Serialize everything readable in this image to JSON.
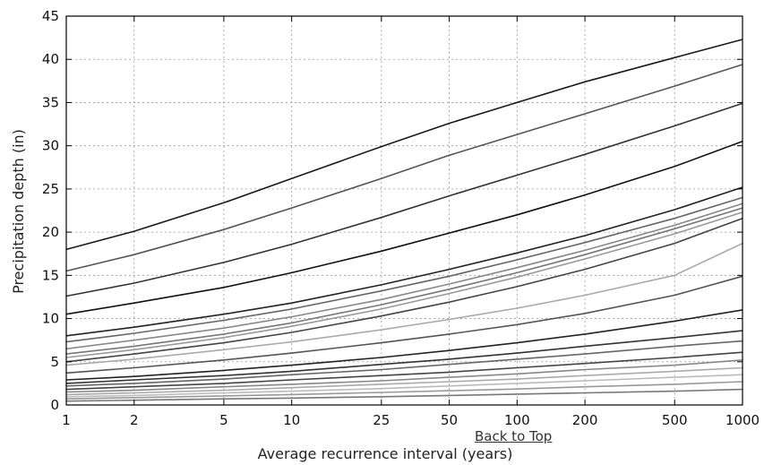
{
  "back_to_top": "Back to Top",
  "chart_data": {
    "type": "line",
    "title": "",
    "xlabel": "Average recurrence interval (years)",
    "ylabel": "Precipitation depth (in)",
    "x_scale": "log",
    "xlim": [
      1,
      1000
    ],
    "ylim": [
      0,
      45
    ],
    "x_ticks": [
      1,
      2,
      5,
      10,
      25,
      50,
      100,
      200,
      500,
      1000
    ],
    "x_tick_labels": [
      "1",
      "2",
      "5",
      "10",
      "25",
      "50",
      "100",
      "200",
      "500",
      "1000"
    ],
    "y_ticks": [
      0,
      5,
      10,
      15,
      20,
      25,
      30,
      35,
      40,
      45
    ],
    "y_tick_labels": [
      "0",
      "5",
      "10",
      "15",
      "20",
      "25",
      "30",
      "35",
      "40",
      "45"
    ],
    "grid": true,
    "x": [
      1,
      2,
      5,
      10,
      25,
      50,
      100,
      200,
      500,
      1000
    ],
    "series": [
      {
        "values": [
          18.0,
          20.1,
          23.4,
          26.2,
          29.9,
          32.6,
          35.0,
          37.4,
          40.2,
          42.3
        ],
        "color": "#1a1a1a"
      },
      {
        "values": [
          15.5,
          17.4,
          20.3,
          22.8,
          26.2,
          28.9,
          31.3,
          33.7,
          36.9,
          39.4
        ],
        "color": "#555555"
      },
      {
        "values": [
          12.6,
          14.1,
          16.5,
          18.6,
          21.7,
          24.2,
          26.6,
          29.0,
          32.3,
          34.9
        ],
        "color": "#333333"
      },
      {
        "values": [
          10.5,
          11.8,
          13.6,
          15.3,
          17.8,
          19.9,
          22.0,
          24.3,
          27.6,
          30.5
        ],
        "color": "#111111"
      },
      {
        "values": [
          8.0,
          9.0,
          10.5,
          11.8,
          13.9,
          15.7,
          17.6,
          19.6,
          22.6,
          25.2
        ],
        "color": "#222222"
      },
      {
        "values": [
          7.3,
          8.3,
          9.8,
          11.1,
          13.2,
          14.9,
          16.8,
          18.8,
          21.6,
          24.0
        ],
        "color": "#666666"
      },
      {
        "values": [
          6.5,
          7.5,
          8.9,
          10.2,
          12.2,
          14.0,
          15.9,
          17.9,
          20.8,
          23.3
        ],
        "color": "#888888"
      },
      {
        "values": [
          5.9,
          6.8,
          8.2,
          9.5,
          11.6,
          13.4,
          15.3,
          17.4,
          20.4,
          22.8
        ],
        "color": "#777777"
      },
      {
        "values": [
          5.5,
          6.4,
          7.8,
          9.1,
          11.1,
          12.9,
          14.8,
          16.9,
          19.8,
          22.3
        ],
        "color": "#999999"
      },
      {
        "values": [
          5.0,
          5.9,
          7.2,
          8.4,
          10.3,
          11.9,
          13.7,
          15.7,
          18.7,
          21.6
        ],
        "color": "#444444"
      },
      {
        "values": [
          4.6,
          5.3,
          6.4,
          7.3,
          8.7,
          9.9,
          11.2,
          12.7,
          15.0,
          18.7
        ],
        "color": "#aaaaaa"
      },
      {
        "values": [
          3.7,
          4.3,
          5.2,
          6.0,
          7.2,
          8.2,
          9.3,
          10.6,
          12.7,
          14.9
        ],
        "color": "#555555"
      },
      {
        "values": [
          2.9,
          3.3,
          4.0,
          4.6,
          5.5,
          6.3,
          7.2,
          8.2,
          9.7,
          11.0
        ],
        "color": "#222222"
      },
      {
        "values": [
          2.5,
          2.9,
          3.4,
          3.9,
          4.7,
          5.3,
          6.0,
          6.8,
          7.8,
          8.6
        ],
        "color": "#333333"
      },
      {
        "values": [
          2.2,
          2.5,
          3.0,
          3.5,
          4.1,
          4.7,
          5.3,
          5.9,
          6.8,
          7.4
        ],
        "color": "#666666"
      },
      {
        "values": [
          1.8,
          2.1,
          2.5,
          2.9,
          3.4,
          3.8,
          4.3,
          4.8,
          5.5,
          6.1
        ],
        "color": "#444444"
      },
      {
        "values": [
          1.5,
          1.7,
          2.1,
          2.4,
          2.8,
          3.2,
          3.6,
          4.1,
          4.6,
          5.2
        ],
        "color": "#888888"
      },
      {
        "values": [
          1.2,
          1.4,
          1.7,
          2.0,
          2.4,
          2.7,
          3.0,
          3.4,
          3.9,
          4.3
        ],
        "color": "#aaaaaa"
      },
      {
        "values": [
          0.95,
          1.1,
          1.4,
          1.6,
          1.9,
          2.2,
          2.5,
          2.8,
          3.2,
          3.5
        ],
        "color": "#bbbbbb"
      },
      {
        "values": [
          0.7,
          0.85,
          1.05,
          1.2,
          1.45,
          1.65,
          1.85,
          2.1,
          2.4,
          2.7
        ],
        "color": "#999999"
      },
      {
        "values": [
          0.45,
          0.55,
          0.7,
          0.8,
          0.95,
          1.1,
          1.25,
          1.4,
          1.6,
          1.8
        ],
        "color": "#777777"
      }
    ]
  }
}
